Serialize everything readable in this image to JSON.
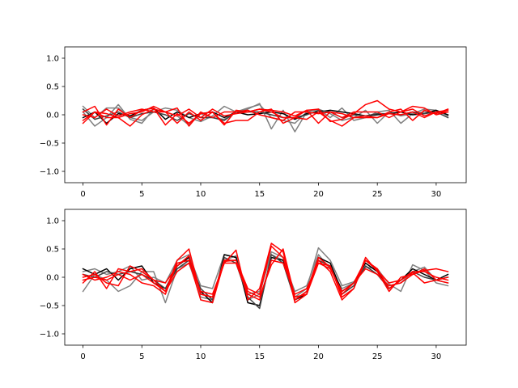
{
  "chart_data": [
    {
      "type": "line",
      "title": "",
      "xlabel": "",
      "ylabel": "",
      "xlim": [
        -1.55,
        32.55
      ],
      "ylim": [
        -1.2,
        1.2
      ],
      "xticks": [
        0,
        5,
        10,
        15,
        20,
        25,
        30
      ],
      "yticks": [
        -1.0,
        -0.5,
        0.0,
        0.5,
        1.0
      ],
      "ytick_labels": [
        "−1.0",
        "−0.5",
        "0.0",
        "0.5",
        "1.0"
      ],
      "grid": false,
      "x": [
        0,
        1,
        2,
        3,
        4,
        5,
        6,
        7,
        8,
        9,
        10,
        11,
        12,
        13,
        14,
        15,
        16,
        17,
        18,
        19,
        20,
        21,
        22,
        23,
        24,
        25,
        26,
        27,
        28,
        29,
        30,
        31
      ],
      "series": [
        {
          "color": "#808080",
          "values": [
            0.15,
            -0.05,
            0.12,
            0.12,
            -0.05,
            -0.1,
            0.05,
            0.12,
            0.08,
            -0.05,
            -0.12,
            -0.02,
            0.15,
            0.05,
            0.1,
            0.2,
            -0.25,
            0.08,
            -0.3,
            0.05,
            0.1,
            -0.05,
            0.12,
            -0.1,
            -0.05,
            0.05,
            0.08,
            -0.15,
            0.02,
            0.1,
            0.08,
            -0.02
          ]
        },
        {
          "color": "#808080",
          "values": [
            0.05,
            -0.2,
            -0.05,
            0.18,
            -0.08,
            -0.15,
            0.1,
            0.05,
            -0.02,
            -0.18,
            0.02,
            -0.05,
            -0.08,
            0.05,
            0.12,
            0.18,
            -0.05,
            -0.1,
            -0.15,
            0.05,
            0.1,
            0.02,
            -0.1,
            -0.05,
            0.08,
            -0.15,
            0.05,
            -0.02,
            0.02,
            0.05,
            0.05,
            0.0
          ]
        },
        {
          "color": "#000000",
          "values": [
            -0.05,
            0.05,
            -0.15,
            0.02,
            -0.02,
            0.08,
            0.12,
            -0.08,
            0.05,
            -0.05,
            0.02,
            0.05,
            -0.05,
            0.05,
            0.0,
            0.02,
            0.05,
            0.02,
            -0.08,
            0.02,
            0.05,
            0.08,
            0.05,
            0.02,
            -0.02,
            0.0,
            0.02,
            0.05,
            0.0,
            0.02,
            0.08,
            0.0
          ]
        },
        {
          "color": "#404040",
          "values": [
            0.1,
            -0.08,
            -0.02,
            0.05,
            -0.05,
            0.02,
            0.05,
            0.0,
            -0.1,
            0.02,
            -0.05,
            -0.05,
            -0.1,
            0.05,
            0.05,
            0.05,
            0.0,
            -0.05,
            -0.05,
            0.0,
            0.08,
            0.05,
            -0.05,
            0.0,
            -0.02,
            0.02,
            0.02,
            0.0,
            0.05,
            0.02,
            0.05,
            -0.05
          ]
        },
        {
          "color": "#ff0000",
          "values": [
            -0.15,
            0.05,
            0.02,
            -0.05,
            -0.2,
            0.0,
            0.1,
            0.05,
            -0.15,
            0.05,
            -0.1,
            0.05,
            -0.18,
            0.08,
            0.05,
            0.1,
            0.08,
            0.05,
            -0.02,
            0.08,
            0.1,
            -0.12,
            -0.08,
            0.02,
            0.18,
            0.25,
            0.1,
            0.05,
            0.15,
            0.12,
            0.0,
            0.05
          ]
        },
        {
          "color": "#ff0000",
          "values": [
            0.05,
            0.15,
            -0.18,
            0.1,
            -0.05,
            0.08,
            0.12,
            -0.18,
            0.02,
            -0.15,
            0.02,
            0.05,
            -0.15,
            -0.1,
            -0.1,
            0.05,
            0.1,
            -0.15,
            -0.05,
            -0.08,
            0.05,
            -0.1,
            -0.2,
            -0.05,
            -0.02,
            -0.05,
            0.05,
            0.1,
            -0.1,
            0.08,
            0.02,
            0.1
          ]
        },
        {
          "color": "#ff0000",
          "values": [
            0.0,
            -0.05,
            0.1,
            -0.02,
            0.05,
            0.1,
            0.05,
            0.05,
            0.12,
            -0.2,
            0.05,
            -0.05,
            0.05,
            0.05,
            0.08,
            0.0,
            -0.05,
            -0.1,
            0.05,
            0.05,
            0.02,
            0.05,
            0.02,
            -0.05,
            -0.05,
            -0.05,
            0.02,
            0.0,
            0.05,
            -0.05,
            0.05,
            0.05
          ]
        },
        {
          "color": "#ff0000",
          "values": [
            -0.1,
            0.05,
            -0.05,
            -0.05,
            0.02,
            0.05,
            0.15,
            0.05,
            -0.02,
            0.1,
            -0.05,
            0.1,
            -0.02,
            0.02,
            0.05,
            0.1,
            0.05,
            -0.05,
            -0.05,
            0.08,
            -0.15,
            0.05,
            -0.05,
            0.05,
            0.05,
            0.05,
            -0.05,
            0.05,
            0.1,
            -0.02,
            0.05,
            0.08
          ]
        }
      ]
    },
    {
      "type": "line",
      "title": "",
      "xlabel": "",
      "ylabel": "",
      "xlim": [
        -1.55,
        32.55
      ],
      "ylim": [
        -1.2,
        1.2
      ],
      "xticks": [
        0,
        5,
        10,
        15,
        20,
        25,
        30
      ],
      "yticks": [
        -1.0,
        -0.5,
        0.0,
        0.5,
        1.0
      ],
      "ytick_labels": [
        "−1.0",
        "−0.5",
        "0.0",
        "0.5",
        "1.0"
      ],
      "grid": false,
      "x": [
        0,
        1,
        2,
        3,
        4,
        5,
        6,
        7,
        8,
        9,
        10,
        11,
        12,
        13,
        14,
        15,
        16,
        17,
        18,
        19,
        20,
        21,
        22,
        23,
        24,
        25,
        26,
        27,
        28,
        29,
        30,
        31
      ],
      "series": [
        {
          "color": "#808080",
          "values": [
            -0.25,
            0.05,
            -0.05,
            -0.25,
            -0.15,
            0.1,
            0.1,
            -0.45,
            0.15,
            0.25,
            -0.35,
            -0.4,
            0.3,
            0.38,
            -0.4,
            -0.3,
            0.45,
            0.35,
            -0.35,
            -0.2,
            0.52,
            0.3,
            -0.15,
            -0.08,
            0.18,
            0.15,
            -0.12,
            -0.25,
            0.22,
            0.12,
            -0.1,
            -0.15
          ]
        },
        {
          "color": "#808080",
          "values": [
            0.1,
            0.15,
            0.05,
            0.1,
            0.2,
            -0.05,
            0.0,
            -0.1,
            0.3,
            0.4,
            -0.15,
            -0.2,
            0.4,
            0.35,
            -0.3,
            -0.25,
            0.4,
            0.3,
            -0.25,
            -0.15,
            0.4,
            0.15,
            -0.2,
            -0.1,
            0.2,
            0.05,
            -0.15,
            -0.1,
            0.1,
            0.18,
            -0.05,
            -0.1
          ]
        },
        {
          "color": "#000000",
          "values": [
            0.15,
            0.05,
            0.15,
            -0.05,
            0.15,
            0.2,
            -0.1,
            -0.2,
            0.2,
            0.35,
            -0.25,
            -0.45,
            0.4,
            0.35,
            -0.45,
            -0.5,
            0.35,
            0.3,
            -0.4,
            -0.3,
            0.35,
            0.25,
            -0.25,
            -0.1,
            0.25,
            0.1,
            -0.2,
            -0.05,
            0.15,
            0.05,
            -0.05,
            0.05
          ]
        },
        {
          "color": "#404040",
          "values": [
            0.05,
            0.0,
            0.1,
            0.05,
            0.1,
            0.05,
            -0.05,
            -0.2,
            0.15,
            0.3,
            -0.2,
            -0.4,
            0.35,
            0.25,
            -0.35,
            -0.55,
            0.4,
            0.25,
            -0.4,
            -0.25,
            0.3,
            0.2,
            -0.3,
            -0.15,
            0.2,
            0.05,
            -0.2,
            -0.05,
            0.1,
            0.0,
            -0.05,
            0.0
          ]
        },
        {
          "color": "#ff0000",
          "values": [
            -0.1,
            0.1,
            -0.2,
            0.15,
            0.1,
            0.15,
            -0.05,
            -0.25,
            0.3,
            0.5,
            -0.3,
            -0.35,
            0.25,
            0.48,
            -0.4,
            -0.2,
            0.6,
            0.45,
            -0.45,
            -0.3,
            0.3,
            0.1,
            -0.4,
            -0.2,
            0.35,
            0.1,
            -0.25,
            0.0,
            0.05,
            0.15,
            -0.05,
            0.0
          ]
        },
        {
          "color": "#ff0000",
          "values": [
            0.05,
            -0.05,
            0.0,
            0.1,
            0.05,
            -0.1,
            -0.15,
            -0.3,
            0.25,
            0.3,
            -0.4,
            -0.45,
            0.28,
            0.3,
            -0.25,
            -0.35,
            0.22,
            0.5,
            -0.35,
            -0.3,
            0.25,
            0.2,
            -0.35,
            -0.2,
            0.3,
            0.15,
            -0.2,
            -0.05,
            0.08,
            -0.1,
            -0.05,
            -0.1
          ]
        },
        {
          "color": "#ff0000",
          "values": [
            0.0,
            0.05,
            -0.1,
            -0.15,
            0.2,
            0.1,
            -0.05,
            -0.1,
            0.2,
            0.38,
            -0.3,
            -0.35,
            0.3,
            0.3,
            -0.2,
            -0.3,
            0.55,
            0.35,
            -0.4,
            -0.25,
            0.35,
            0.18,
            -0.3,
            -0.1,
            0.3,
            0.12,
            -0.1,
            -0.05,
            0.1,
            0.1,
            0.0,
            -0.05
          ]
        },
        {
          "color": "#ff0000",
          "values": [
            -0.05,
            0.0,
            -0.05,
            0.05,
            -0.05,
            0.05,
            -0.1,
            -0.25,
            0.1,
            0.25,
            -0.25,
            -0.3,
            0.25,
            0.25,
            -0.3,
            -0.4,
            0.3,
            0.25,
            -0.3,
            -0.2,
            0.25,
            0.15,
            -0.25,
            -0.1,
            0.15,
            0.05,
            -0.15,
            -0.1,
            0.05,
            0.12,
            0.15,
            0.1
          ]
        }
      ]
    }
  ]
}
